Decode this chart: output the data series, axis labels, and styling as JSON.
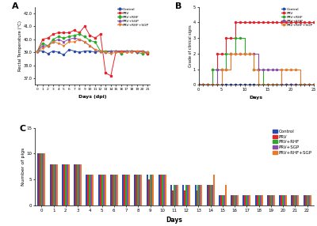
{
  "colors": {
    "Control": "#2B4BAA",
    "PRV": "#E8222A",
    "PRV+RHF": "#2AAA2A",
    "PRV+SGP": "#8B4BAA",
    "PRV+RHF+SGP": "#E87A2A"
  },
  "background_color": "#ffffff",
  "panel_A": {
    "xlabel": "Days (dpi)",
    "ylabel": "Rectal Temperature (°C)",
    "xlim": [
      0,
      21
    ],
    "ylim": [
      36.5,
      42.5
    ],
    "yticks": [
      37.0,
      38.0,
      39.0,
      40.0,
      41.0,
      42.0
    ],
    "ytick_labels": [
      "37.0",
      "38.0",
      "39.0",
      "40.0",
      "41.0",
      "42.0"
    ],
    "xticks": [
      0,
      1,
      2,
      3,
      4,
      5,
      6,
      7,
      8,
      9,
      10,
      11,
      12,
      13,
      14,
      15,
      16,
      17,
      18,
      19,
      20,
      21
    ],
    "data": {
      "Control": {
        "x": [
          0,
          1,
          2,
          3,
          4,
          5,
          6,
          7,
          8,
          9,
          10,
          11,
          12,
          13,
          14,
          15,
          16,
          17,
          18,
          19,
          20,
          21
        ],
        "y": [
          39.1,
          39.1,
          38.9,
          39.1,
          39.0,
          38.8,
          39.2,
          39.1,
          39.0,
          39.1,
          39.1,
          39.0,
          39.1,
          39.0,
          39.1,
          39.1,
          39.0,
          39.1,
          39.1,
          39.0,
          39.1,
          38.9
        ]
      },
      "PRV": {
        "x": [
          0,
          1,
          2,
          3,
          4,
          5,
          6,
          7,
          8,
          9,
          10,
          11,
          12,
          13,
          14,
          15,
          16,
          17,
          18,
          19,
          20,
          21
        ],
        "y": [
          39.1,
          40.0,
          40.1,
          40.4,
          40.5,
          40.5,
          40.5,
          40.7,
          40.5,
          41.0,
          40.3,
          40.1,
          40.4,
          37.4,
          37.2,
          39.1,
          39.1,
          39.1,
          39.1,
          39.1,
          39.1,
          38.9
        ]
      },
      "PRV+RHF": {
        "x": [
          0,
          1,
          2,
          3,
          4,
          5,
          6,
          7,
          8,
          9,
          10,
          11,
          12,
          13,
          14,
          15,
          16,
          17,
          18,
          19,
          20,
          21
        ],
        "y": [
          39.1,
          39.7,
          39.5,
          40.0,
          40.2,
          40.1,
          40.2,
          40.3,
          40.4,
          40.2,
          39.9,
          39.8,
          39.1,
          39.1,
          39.1,
          39.1,
          38.9,
          39.1,
          39.1,
          39.0,
          38.9,
          39.0
        ]
      },
      "PRV+SGP": {
        "x": [
          0,
          1,
          2,
          3,
          4,
          5,
          6,
          7,
          8,
          9,
          10,
          11,
          12,
          13,
          14,
          15,
          16,
          17,
          18,
          19,
          20,
          21
        ],
        "y": [
          39.1,
          39.5,
          39.5,
          39.8,
          40.0,
          39.8,
          40.0,
          40.1,
          40.0,
          39.8,
          39.5,
          39.2,
          39.1,
          39.0,
          39.1,
          39.1,
          39.0,
          39.1,
          39.1,
          39.0,
          39.1,
          39.0
        ]
      },
      "PRV+RHF+SGP": {
        "x": [
          0,
          1,
          2,
          3,
          4,
          5,
          6,
          7,
          8,
          9,
          10,
          11,
          12,
          13,
          14,
          15,
          16,
          17,
          18,
          19,
          20,
          21
        ],
        "y": [
          39.1,
          39.3,
          39.5,
          39.8,
          39.7,
          39.5,
          39.8,
          39.8,
          40.0,
          39.8,
          39.5,
          39.2,
          39.1,
          39.0,
          38.9,
          39.0,
          39.0,
          39.0,
          39.0,
          39.1,
          39.0,
          39.0
        ]
      }
    }
  },
  "panel_B": {
    "xlabel": "Days",
    "ylabel": "Grade of clinical signs",
    "ylim": [
      0,
      5
    ],
    "yticks": [
      0,
      1,
      2,
      3,
      4,
      5
    ],
    "xtick_step": 5,
    "x_max": 25,
    "data": {
      "Control": {
        "x": [
          0,
          1,
          2,
          3,
          4,
          5,
          6,
          7,
          8,
          9,
          10,
          11,
          12,
          13,
          14,
          15,
          16,
          17,
          18,
          19,
          20,
          21,
          22,
          23,
          24,
          25
        ],
        "y": [
          0,
          0,
          0,
          0,
          0,
          0,
          0,
          0,
          0,
          0,
          0,
          0,
          0,
          0,
          0,
          0,
          0,
          0,
          0,
          0,
          0,
          0,
          0,
          0,
          0,
          0
        ]
      },
      "PRV": {
        "x": [
          0,
          1,
          2,
          3,
          4,
          5,
          6,
          7,
          8,
          9,
          10,
          11,
          12,
          13,
          14,
          15,
          16,
          17,
          18,
          19,
          20,
          21,
          22,
          23,
          24,
          25
        ],
        "y": [
          0,
          0,
          0,
          1,
          2,
          2,
          3,
          3,
          4,
          4,
          4,
          4,
          4,
          4,
          4,
          4,
          4,
          4,
          4,
          4,
          4,
          4,
          4,
          4,
          4,
          4
        ]
      },
      "PRV+RHF": {
        "x": [
          0,
          1,
          2,
          3,
          4,
          5,
          6,
          7,
          8,
          9,
          10,
          11,
          12,
          13,
          14,
          15,
          16,
          17,
          18,
          19,
          20,
          21,
          22,
          23,
          24,
          25
        ],
        "y": [
          0,
          0,
          0,
          1,
          1,
          1,
          2,
          2,
          3,
          3,
          2,
          2,
          1,
          1,
          0,
          0,
          0,
          0,
          0,
          0,
          0,
          0,
          0,
          0,
          0,
          0
        ]
      },
      "PRV+SGP": {
        "x": [
          0,
          1,
          2,
          3,
          4,
          5,
          6,
          7,
          8,
          9,
          10,
          11,
          12,
          13,
          14,
          15,
          16,
          17,
          18,
          19,
          20,
          21,
          22,
          23,
          24,
          25
        ],
        "y": [
          0,
          0,
          0,
          0,
          1,
          1,
          1,
          2,
          2,
          2,
          2,
          2,
          2,
          1,
          1,
          1,
          1,
          1,
          0,
          0,
          0,
          0,
          0,
          0,
          0,
          0
        ]
      },
      "PRV+RHF+SGP": {
        "x": [
          0,
          1,
          2,
          3,
          4,
          5,
          6,
          7,
          8,
          9,
          10,
          11,
          12,
          13,
          14,
          15,
          16,
          17,
          18,
          19,
          20,
          21,
          22,
          23,
          24,
          25
        ],
        "y": [
          0,
          0,
          0,
          0,
          0,
          1,
          1,
          2,
          2,
          2,
          2,
          2,
          1,
          0,
          0,
          0,
          0,
          0,
          1,
          1,
          1,
          1,
          0,
          0,
          0,
          0
        ]
      }
    }
  },
  "panel_C": {
    "xlabel": "Days",
    "ylabel": "Number of pigs",
    "ylim": [
      0,
      15
    ],
    "yticks": [
      0,
      5,
      10,
      15
    ],
    "days": [
      0,
      1,
      2,
      3,
      4,
      5,
      6,
      7,
      8,
      9,
      10,
      11,
      12,
      13,
      14,
      15,
      16,
      17,
      18,
      19,
      20,
      21,
      22
    ],
    "data": {
      "Control": [
        10,
        8,
        8,
        8,
        6,
        6,
        6,
        6,
        6,
        6,
        6,
        4,
        4,
        4,
        4,
        2,
        2,
        2,
        2,
        2,
        2,
        2,
        2
      ],
      "PRV": [
        10,
        8,
        8,
        8,
        6,
        6,
        6,
        6,
        6,
        5,
        6,
        3,
        3,
        3,
        4,
        2,
        2,
        2,
        2,
        2,
        2,
        2,
        2
      ],
      "PRV+RHF": [
        10,
        8,
        8,
        8,
        6,
        6,
        6,
        6,
        6,
        6,
        6,
        4,
        4,
        4,
        4,
        2,
        2,
        2,
        2,
        2,
        2,
        2,
        2
      ],
      "PRV+SGP": [
        10,
        8,
        8,
        8,
        6,
        6,
        6,
        6,
        6,
        6,
        6,
        4,
        4,
        4,
        4,
        2,
        2,
        2,
        2,
        2,
        2,
        2,
        2
      ],
      "PRV+RHF+SGP": [
        10,
        8,
        8,
        8,
        6,
        6,
        6,
        6,
        6,
        6,
        6,
        4,
        4,
        4,
        6,
        4,
        2,
        2,
        2,
        2,
        2,
        2,
        2
      ]
    }
  },
  "group_order": [
    "Control",
    "PRV",
    "PRV+RHF",
    "PRV+SGP",
    "PRV+RHF+SGP"
  ],
  "markers": {
    "Control": "o",
    "PRV": "s",
    "PRV+RHF": "D",
    "PRV+SGP": "^",
    "PRV+RHF+SGP": "v"
  }
}
